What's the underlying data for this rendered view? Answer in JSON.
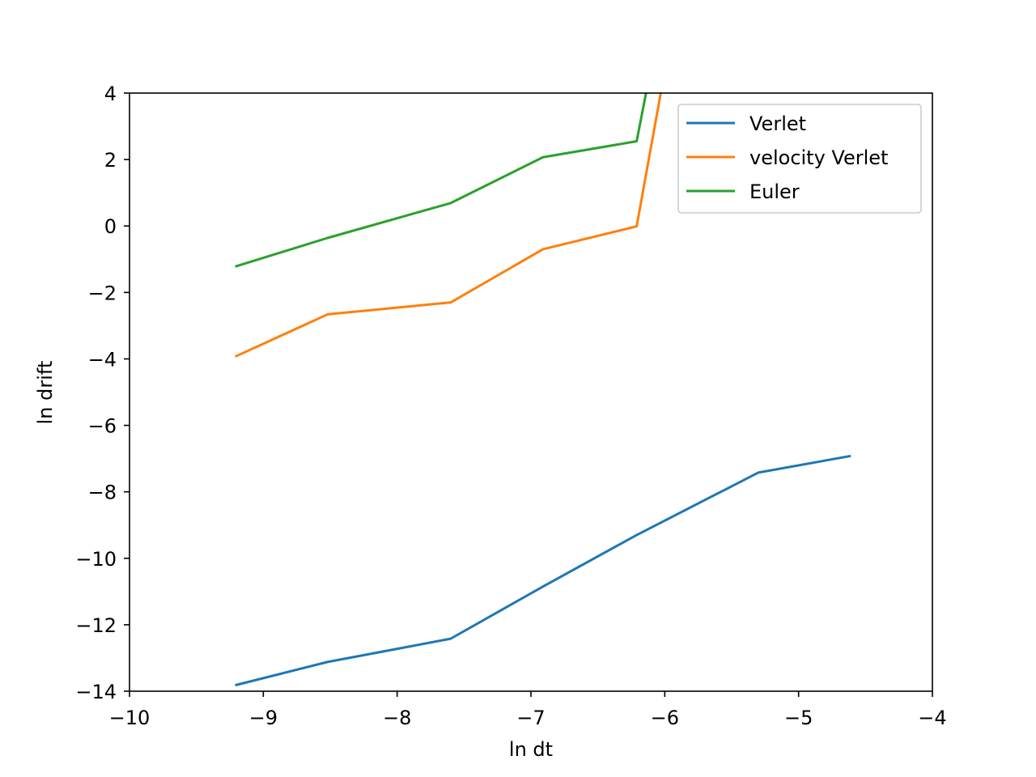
{
  "chart_data": {
    "type": "line",
    "title": "",
    "xlabel": "ln dt",
    "ylabel": "ln drift",
    "xlim": [
      -10,
      -4
    ],
    "ylim": [
      -14,
      4
    ],
    "xticks": [
      -10,
      -9,
      -8,
      -7,
      -6,
      -5,
      -4
    ],
    "yticks": [
      -14,
      -12,
      -10,
      -8,
      -6,
      -4,
      -2,
      0,
      2,
      4
    ],
    "xtick_labels": [
      "−10",
      "−9",
      "−8",
      "−7",
      "−6",
      "−5",
      "−4"
    ],
    "ytick_labels": [
      "−14",
      "−12",
      "−10",
      "−8",
      "−6",
      "−4",
      "−2",
      "0",
      "2",
      "4"
    ],
    "grid": false,
    "legend_position": "top-right",
    "series": [
      {
        "name": "Verlet",
        "color": "#1f77b4",
        "x": [
          -9.21,
          -8.52,
          -7.6,
          -6.91,
          -6.21,
          -5.3,
          -4.61
        ],
        "y": [
          -13.82,
          -13.12,
          -12.42,
          -10.85,
          -9.3,
          -7.42,
          -6.92
        ]
      },
      {
        "name": "velocity Verlet",
        "color": "#ff7f0e",
        "x": [
          -9.21,
          -8.52,
          -7.6,
          -6.91,
          -6.21,
          -6.03
        ],
        "y": [
          -3.93,
          -2.66,
          -2.3,
          -0.7,
          -0.01,
          4.0
        ]
      },
      {
        "name": "Euler",
        "color": "#2ca02c",
        "x": [
          -9.21,
          -8.52,
          -7.6,
          -6.91,
          -6.21,
          -6.14
        ],
        "y": [
          -1.22,
          -0.36,
          0.69,
          2.07,
          2.55,
          4.0
        ]
      }
    ]
  }
}
